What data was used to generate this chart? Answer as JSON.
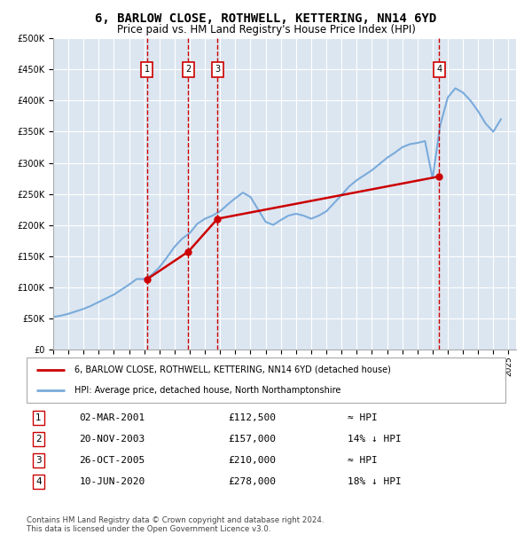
{
  "title": "6, BARLOW CLOSE, ROTHWELL, KETTERING, NN14 6YD",
  "subtitle": "Price paid vs. HM Land Registry's House Price Index (HPI)",
  "plot_bg_color": "#dce6f1",
  "hpi_color": "#7aabdb",
  "price_color": "#cc0000",
  "ylim": [
    0,
    500000
  ],
  "yticks": [
    0,
    50000,
    100000,
    150000,
    200000,
    250000,
    300000,
    350000,
    400000,
    450000,
    500000
  ],
  "xlim_start": 1995,
  "xlim_end": 2025.5,
  "xticks": [
    1995,
    1996,
    1997,
    1998,
    1999,
    2000,
    2001,
    2002,
    2003,
    2004,
    2005,
    2006,
    2007,
    2008,
    2009,
    2010,
    2011,
    2012,
    2013,
    2014,
    2015,
    2016,
    2017,
    2018,
    2019,
    2020,
    2021,
    2022,
    2023,
    2024,
    2025
  ],
  "hpi_years": [
    1995,
    1995.5,
    1996,
    1996.5,
    1997,
    1997.5,
    1998,
    1998.5,
    1999,
    1999.5,
    2000,
    2000.5,
    2001,
    2001.5,
    2002,
    2002.5,
    2003,
    2003.5,
    2004,
    2004.5,
    2005,
    2005.5,
    2006,
    2006.5,
    2007,
    2007.5,
    2008,
    2008.5,
    2009,
    2009.5,
    2010,
    2010.5,
    2011,
    2011.5,
    2012,
    2012.5,
    2013,
    2013.5,
    2014,
    2014.5,
    2015,
    2015.5,
    2016,
    2016.5,
    2017,
    2017.5,
    2018,
    2018.5,
    2019,
    2019.5,
    2020,
    2020.5,
    2021,
    2021.5,
    2022,
    2022.5,
    2023,
    2023.5,
    2024,
    2024.5
  ],
  "hpi_values": [
    52000,
    54000,
    57000,
    61000,
    65000,
    70000,
    76000,
    82000,
    88000,
    96000,
    104000,
    113000,
    113000,
    120000,
    132000,
    148000,
    165000,
    178000,
    187000,
    202000,
    210000,
    215000,
    222000,
    233000,
    243000,
    252000,
    245000,
    225000,
    205000,
    200000,
    208000,
    215000,
    218000,
    215000,
    210000,
    215000,
    222000,
    235000,
    248000,
    262000,
    272000,
    280000,
    288000,
    298000,
    308000,
    316000,
    325000,
    330000,
    332000,
    335000,
    275000,
    360000,
    405000,
    420000,
    413000,
    400000,
    383000,
    363000,
    350000,
    370000
  ],
  "price_paid": [
    {
      "year": 2001.17,
      "price": 112500,
      "label": "1"
    },
    {
      "year": 2003.9,
      "price": 157000,
      "label": "2"
    },
    {
      "year": 2005.83,
      "price": 210000,
      "label": "3"
    },
    {
      "year": 2020.44,
      "price": 278000,
      "label": "4"
    }
  ],
  "vline_years": [
    2001.17,
    2003.9,
    2005.83,
    2020.44
  ],
  "legend_entries": [
    {
      "label": "6, BARLOW CLOSE, ROTHWELL, KETTERING, NN14 6YD (detached house)",
      "color": "#cc0000"
    },
    {
      "label": "HPI: Average price, detached house, North Northamptonshire",
      "color": "#7aabdb"
    }
  ],
  "table_rows": [
    {
      "num": "1",
      "date": "02-MAR-2001",
      "price": "£112,500",
      "relation": "≈ HPI"
    },
    {
      "num": "2",
      "date": "20-NOV-2003",
      "price": "£157,000",
      "relation": "14% ↓ HPI"
    },
    {
      "num": "3",
      "date": "26-OCT-2005",
      "price": "£210,000",
      "relation": "≈ HPI"
    },
    {
      "num": "4",
      "date": "10-JUN-2020",
      "price": "£278,000",
      "relation": "18% ↓ HPI"
    }
  ],
  "footer": "Contains HM Land Registry data © Crown copyright and database right 2024.\nThis data is licensed under the Open Government Licence v3.0."
}
